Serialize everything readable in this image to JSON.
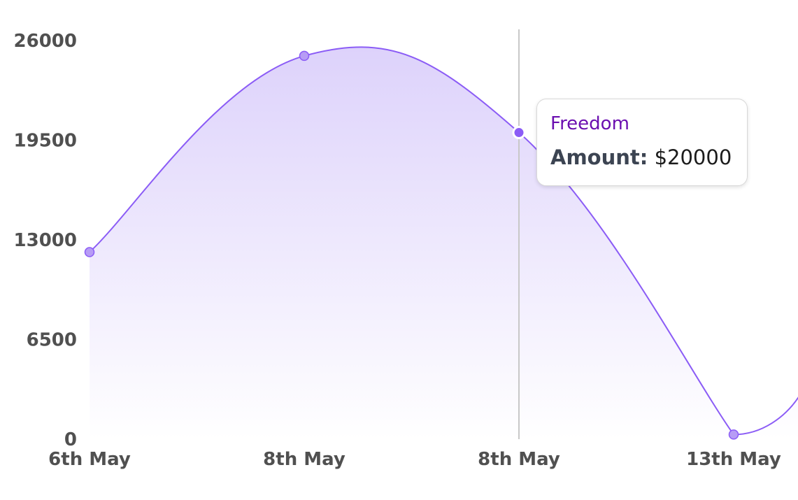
{
  "chart_data": {
    "type": "area",
    "categories": [
      "6th May",
      "8th May",
      "8th May",
      "13th May"
    ],
    "series": [
      {
        "name": "Freedom",
        "values": [
          12200,
          25000,
          20000,
          300
        ]
      }
    ],
    "yticks": [
      "26000",
      "19500",
      "13000",
      "6500",
      "0"
    ],
    "ylim": [
      0,
      26000
    ],
    "line_color": "#8b5cf6",
    "fill_color_top": "#ddd2fb",
    "fill_color_bottom": "#ffffff",
    "marker_color": "#b79cf5",
    "grid": false,
    "curve": "smooth"
  },
  "tooltip": {
    "series_name": "Freedom",
    "amount_label": "Amount:",
    "amount_value": "$20000",
    "category_index": 2
  }
}
